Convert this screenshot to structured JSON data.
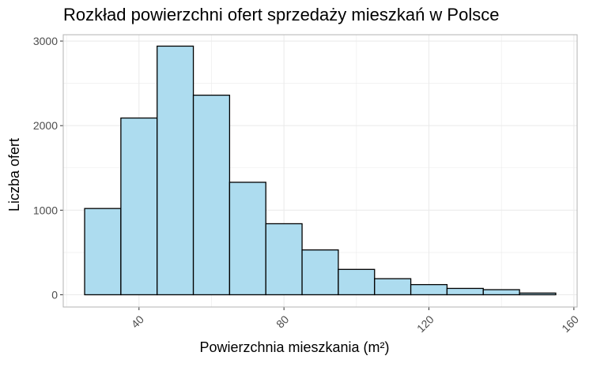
{
  "chart_data": {
    "type": "bar",
    "title": "Rozkład powierzchni ofert sprzedaży mieszkań w Polsce",
    "xlabel": "Powierzchnia mieszkania (m²)",
    "ylabel": "Liczba ofert",
    "bins": [
      {
        "x0": 25,
        "x1": 35,
        "count": 1020
      },
      {
        "x0": 35,
        "x1": 45,
        "count": 2090
      },
      {
        "x0": 45,
        "x1": 55,
        "count": 2940
      },
      {
        "x0": 55,
        "x1": 65,
        "count": 2360
      },
      {
        "x0": 65,
        "x1": 75,
        "count": 1330
      },
      {
        "x0": 75,
        "x1": 85,
        "count": 840
      },
      {
        "x0": 85,
        "x1": 95,
        "count": 530
      },
      {
        "x0": 95,
        "x1": 105,
        "count": 300
      },
      {
        "x0": 105,
        "x1": 115,
        "count": 190
      },
      {
        "x0": 115,
        "x1": 125,
        "count": 120
      },
      {
        "x0": 125,
        "x1": 135,
        "count": 75
      },
      {
        "x0": 135,
        "x1": 145,
        "count": 60
      },
      {
        "x0": 145,
        "x1": 155,
        "count": 20
      }
    ],
    "xlim": [
      19.1,
      160.9
    ],
    "ylim": [
      -145,
      3075
    ],
    "xticks": [
      40,
      80,
      120,
      160
    ],
    "xtick_labels": [
      "40",
      "80",
      "120",
      "160"
    ],
    "yticks": [
      0,
      1000,
      2000,
      3000
    ],
    "ytick_labels": [
      "0",
      "1000",
      "2000",
      "3000"
    ],
    "grid": true,
    "legend": "none",
    "colors": {
      "bar_fill": "#ADDCEF",
      "bar_stroke": "#000000",
      "grid": "#EBEBEB",
      "panel_border": "#B3B3B3"
    }
  }
}
